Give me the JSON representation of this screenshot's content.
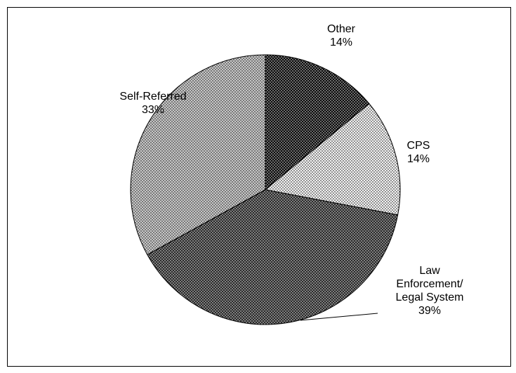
{
  "chart_data": {
    "type": "pie",
    "categories": [
      "Other",
      "CPS",
      "Law Enforcement/ Legal System",
      "Self-Referred"
    ],
    "values": [
      14,
      14,
      39,
      33
    ],
    "value_labels": [
      "14%",
      "14%",
      "39%",
      "33%"
    ],
    "colors": [
      "#0a0a0a",
      "#f2f2f2",
      "#2a2a2a",
      "#c8c8c8"
    ]
  }
}
